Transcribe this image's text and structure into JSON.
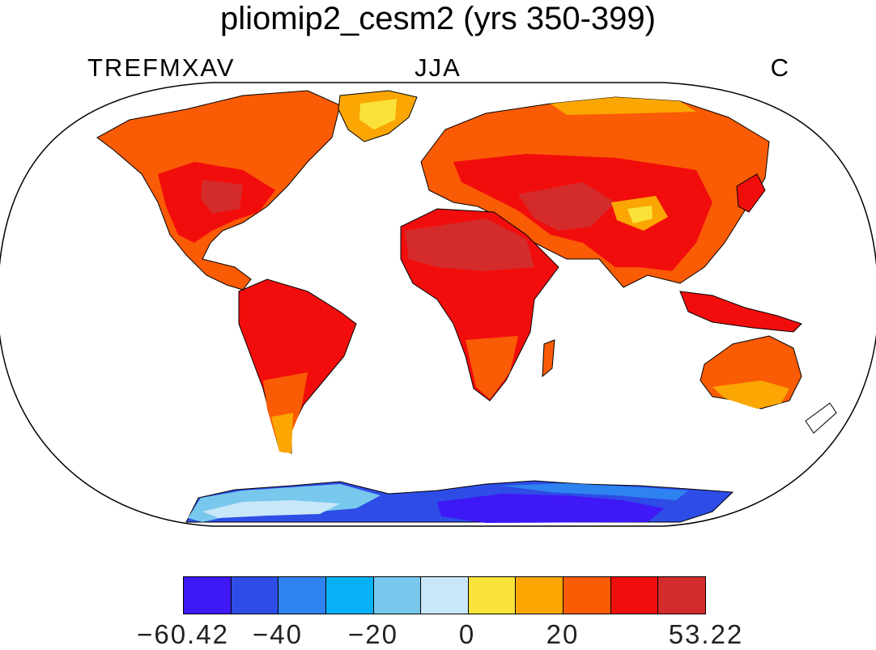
{
  "title": "pliomip2_cesm2 (yrs 350-399)",
  "variable": "TREFMXAV",
  "season": "JJA",
  "units": "C",
  "colorbar": {
    "colors": [
      "#3f18f6",
      "#2e4ce6",
      "#2f83f0",
      "#06b1f8",
      "#78c8ee",
      "#c8e7f8",
      "#fbe23b",
      "#fba602",
      "#fa5b05",
      "#f20d0d",
      "#d42b2b"
    ],
    "tick_labels": [
      "−60.42",
      "−40",
      "−20",
      "0",
      "20",
      "53.22"
    ]
  },
  "colors": {
    "land_hot": "#d42b2b",
    "land_warm": "#f20d0d",
    "land_mild": "#fa5b05",
    "land_cool": "#fba602",
    "land_cold": "#fbe23b",
    "ice_pale": "#c8e7f8",
    "ice_light": "#78c8ee",
    "ice_mid": "#2f83f0",
    "ice_deep": "#2e4ce6",
    "ice_coldest": "#3f18f6"
  }
}
